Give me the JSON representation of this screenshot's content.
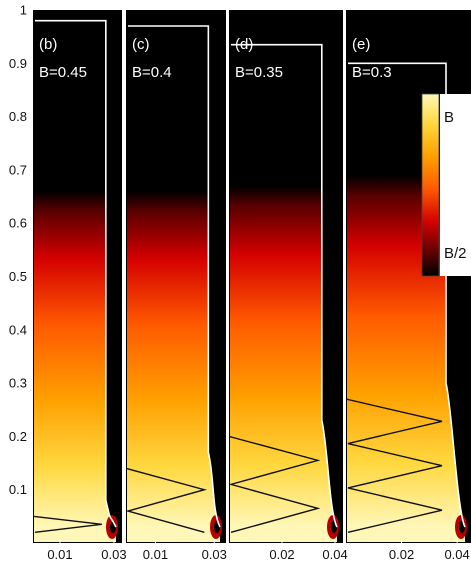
{
  "chart_data": {
    "type": "heatmap",
    "y_axis": {
      "ylim": [
        0,
        1
      ],
      "ticks": [
        0.1,
        0.2,
        0.3,
        0.4,
        0.5,
        0.6,
        0.7,
        0.8,
        0.9,
        1
      ],
      "tick_labels": [
        "0.1",
        "0.2",
        "0.3",
        "0.4",
        "0.5",
        "0.6",
        "0.7",
        "0.8",
        "0.9",
        "1"
      ]
    },
    "colormap": [
      "#000000",
      "#5a0000",
      "#d40000",
      "#ff5a00",
      "#ffa000",
      "#ffd840",
      "#fff7b8"
    ],
    "panels": [
      {
        "label": "(b)",
        "param_label": "B=0.45",
        "xlim": [
          0,
          0.033
        ],
        "xticks": [
          0.01,
          0.03
        ],
        "xtick_labels": [
          "0.01",
          "0.03"
        ],
        "top_height": 0.98,
        "boundary_x": 0.027,
        "bright_top": 0.66,
        "zigzag_top": 0.05
      },
      {
        "label": "(c)",
        "param_label": "B=0.4",
        "xlim": [
          0,
          0.034
        ],
        "xticks": [
          0.01,
          0.03
        ],
        "xtick_labels": [
          "0.01",
          "0.03"
        ],
        "top_height": 0.97,
        "boundary_x": 0.028,
        "bright_top": 0.66,
        "zigzag_top": 0.14
      },
      {
        "label": "(d)",
        "param_label": "B=0.35",
        "xlim": [
          0,
          0.043
        ],
        "xticks": [
          0.02,
          0.04
        ],
        "xtick_labels": [
          "0.02",
          "0.04"
        ],
        "top_height": 0.935,
        "boundary_x": 0.035,
        "bright_top": 0.67,
        "zigzag_top": 0.2
      },
      {
        "label": "(e)",
        "param_label": "B=0.3",
        "xlim": [
          0,
          0.045
        ],
        "xticks": [
          0.02,
          0.04
        ],
        "xtick_labels": [
          "0.02",
          "0.04"
        ],
        "top_height": 0.9,
        "boundary_x": 0.036,
        "bright_top": 0.69,
        "zigzag_top": 0.27
      }
    ],
    "colorbar": {
      "tick_labels": [
        "B",
        "B/2"
      ]
    }
  }
}
